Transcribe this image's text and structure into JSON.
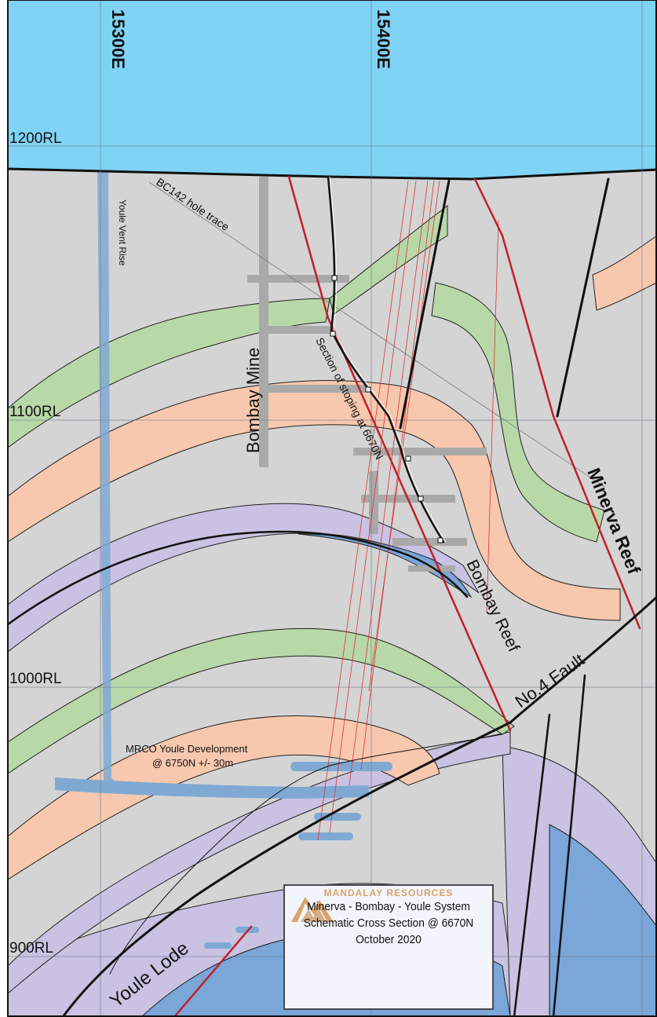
{
  "rl_labels": {
    "rl1200": "1200RL",
    "rl1100": "1100RL",
    "rl1000": "1000RL",
    "rl900": "900RL"
  },
  "east_labels": {
    "e15300": "15300E",
    "e15400": "15400E"
  },
  "annotations": {
    "hole_trace": "BC142 hole trace",
    "vent_rise": "Youle Vent Rise",
    "bombay_mine": "Bombay Mine",
    "stoping": "Section of stoping at 6670N",
    "bombay_reef": "Bombay Reef",
    "minerva_reef": "Minerva Reef",
    "no4_fault": "No.4 Fault",
    "youle_dev_line1": "MRCO Youle Development",
    "youle_dev_line2": "@ 6750N +/- 30m",
    "youle_lode": "Youle Lode"
  },
  "title_block": {
    "company": "MANDALAY RESOURCES",
    "line1": "Minerva - Bombay - Youle System",
    "line2": "Schematic Cross Section @ 6670N",
    "line3": "October 2020"
  },
  "colors": {
    "sky": "#7fd3f5",
    "rock": "#d4d4d4",
    "green_band": "#b9d8a8",
    "salmon_band": "#f7c8ae",
    "lavender_band": "#c9c2e2",
    "blue_unit": "#7aa6d8",
    "fault_red": "#c0202a",
    "workings_grey": "#a9a9a9",
    "workings_blue": "#7fa9d3"
  }
}
